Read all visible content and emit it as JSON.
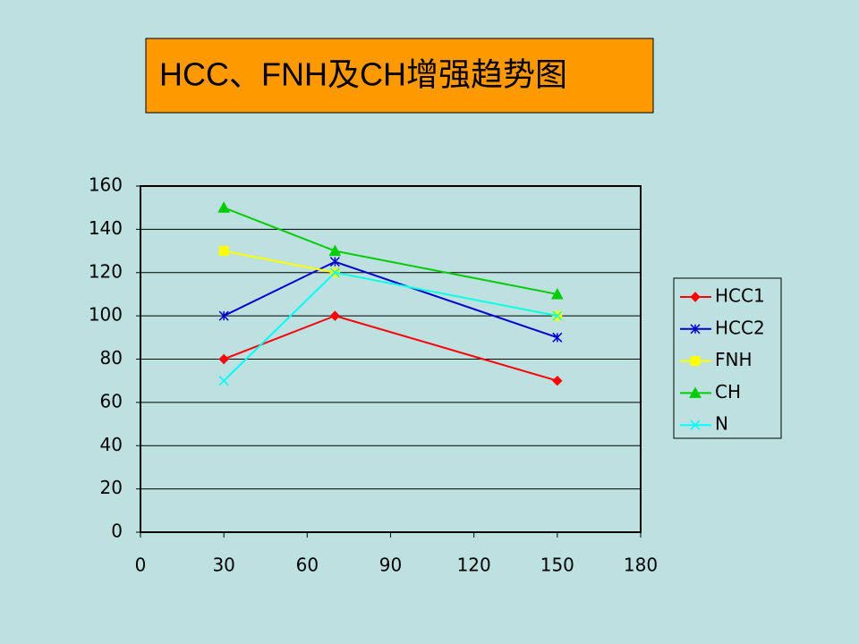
{
  "chart_data": {
    "type": "line",
    "title": "HCC、FNH及CH增强趋势图",
    "x": [
      30,
      70,
      150
    ],
    "series": [
      {
        "name": "HCC1",
        "color": "#ff0000",
        "marker": "diamond",
        "values": [
          80,
          100,
          70
        ]
      },
      {
        "name": "HCC2",
        "color": "#0000cc",
        "marker": "asterisk",
        "values": [
          100,
          125,
          90
        ]
      },
      {
        "name": "FNH",
        "color": "#ffff00",
        "marker": "square",
        "values": [
          130,
          120,
          100
        ]
      },
      {
        "name": "CH",
        "color": "#00cc00",
        "marker": "triangle",
        "values": [
          150,
          130,
          110
        ]
      },
      {
        "name": "N",
        "color": "#00ffff",
        "marker": "cross",
        "values": [
          70,
          120,
          100
        ]
      }
    ],
    "xlim": [
      0,
      180
    ],
    "xticks": [
      0,
      30,
      60,
      90,
      120,
      150,
      180
    ],
    "ylim": [
      0,
      160
    ],
    "yticks": [
      0,
      20,
      40,
      60,
      80,
      100,
      120,
      140,
      160
    ],
    "grid": true,
    "legend": "right"
  }
}
